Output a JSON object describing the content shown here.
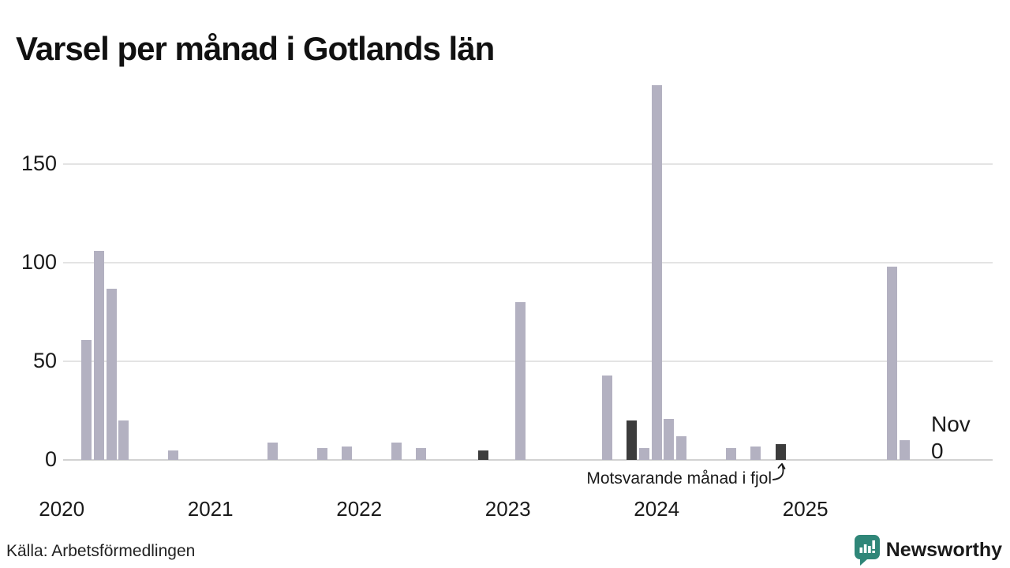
{
  "title": "Varsel per månad i Gotlands län",
  "source": "Källa: Arbetsförmedlingen",
  "logo": {
    "text": "Newsworthy",
    "color": "#2f8678"
  },
  "annotation": {
    "text": "Motsvarande månad i fjol",
    "last_month_label": "Nov",
    "last_month_value": "0"
  },
  "colors": {
    "bar": "#b3b1c1",
    "bar_highlight": "#3c3c3c",
    "gridline": "#e4e4e4",
    "axis_line": "#d2d2d2",
    "text": "#1a1a1a"
  },
  "chart_data": {
    "type": "bar",
    "title": "Varsel per månad i Gotlands län",
    "xlabel": "",
    "ylabel": "",
    "x_start": "2020-01",
    "x_end": "2025-11",
    "ylim": [
      0,
      190
    ],
    "yticks": [
      0,
      50,
      100,
      150
    ],
    "grid": true,
    "year_labels": [
      "2020",
      "2021",
      "2022",
      "2023",
      "2024",
      "2025"
    ],
    "highlight_meaning": "Motsvarande månad i fjol (november föregående år)",
    "bars": [
      {
        "month": "2020-03",
        "value": 61,
        "highlight": false
      },
      {
        "month": "2020-04",
        "value": 106,
        "highlight": false
      },
      {
        "month": "2020-05",
        "value": 87,
        "highlight": false
      },
      {
        "month": "2020-06",
        "value": 20,
        "highlight": false
      },
      {
        "month": "2020-10",
        "value": 5,
        "highlight": false
      },
      {
        "month": "2021-06",
        "value": 9,
        "highlight": false
      },
      {
        "month": "2021-10",
        "value": 6,
        "highlight": false
      },
      {
        "month": "2021-12",
        "value": 7,
        "highlight": false
      },
      {
        "month": "2022-04",
        "value": 9,
        "highlight": false
      },
      {
        "month": "2022-06",
        "value": 6,
        "highlight": false
      },
      {
        "month": "2022-11",
        "value": 5,
        "highlight": true
      },
      {
        "month": "2023-02",
        "value": 80,
        "highlight": false
      },
      {
        "month": "2023-09",
        "value": 43,
        "highlight": false
      },
      {
        "month": "2023-11",
        "value": 20,
        "highlight": true
      },
      {
        "month": "2023-12",
        "value": 6,
        "highlight": false
      },
      {
        "month": "2024-01",
        "value": 190,
        "highlight": false
      },
      {
        "month": "2024-02",
        "value": 21,
        "highlight": false
      },
      {
        "month": "2024-03",
        "value": 12,
        "highlight": false
      },
      {
        "month": "2024-07",
        "value": 6,
        "highlight": false
      },
      {
        "month": "2024-09",
        "value": 7,
        "highlight": false
      },
      {
        "month": "2024-11",
        "value": 8,
        "highlight": true
      },
      {
        "month": "2025-08",
        "value": 98,
        "highlight": false
      },
      {
        "month": "2025-09",
        "value": 10,
        "highlight": false
      },
      {
        "month": "2025-11",
        "value": 0,
        "highlight": false
      }
    ]
  }
}
